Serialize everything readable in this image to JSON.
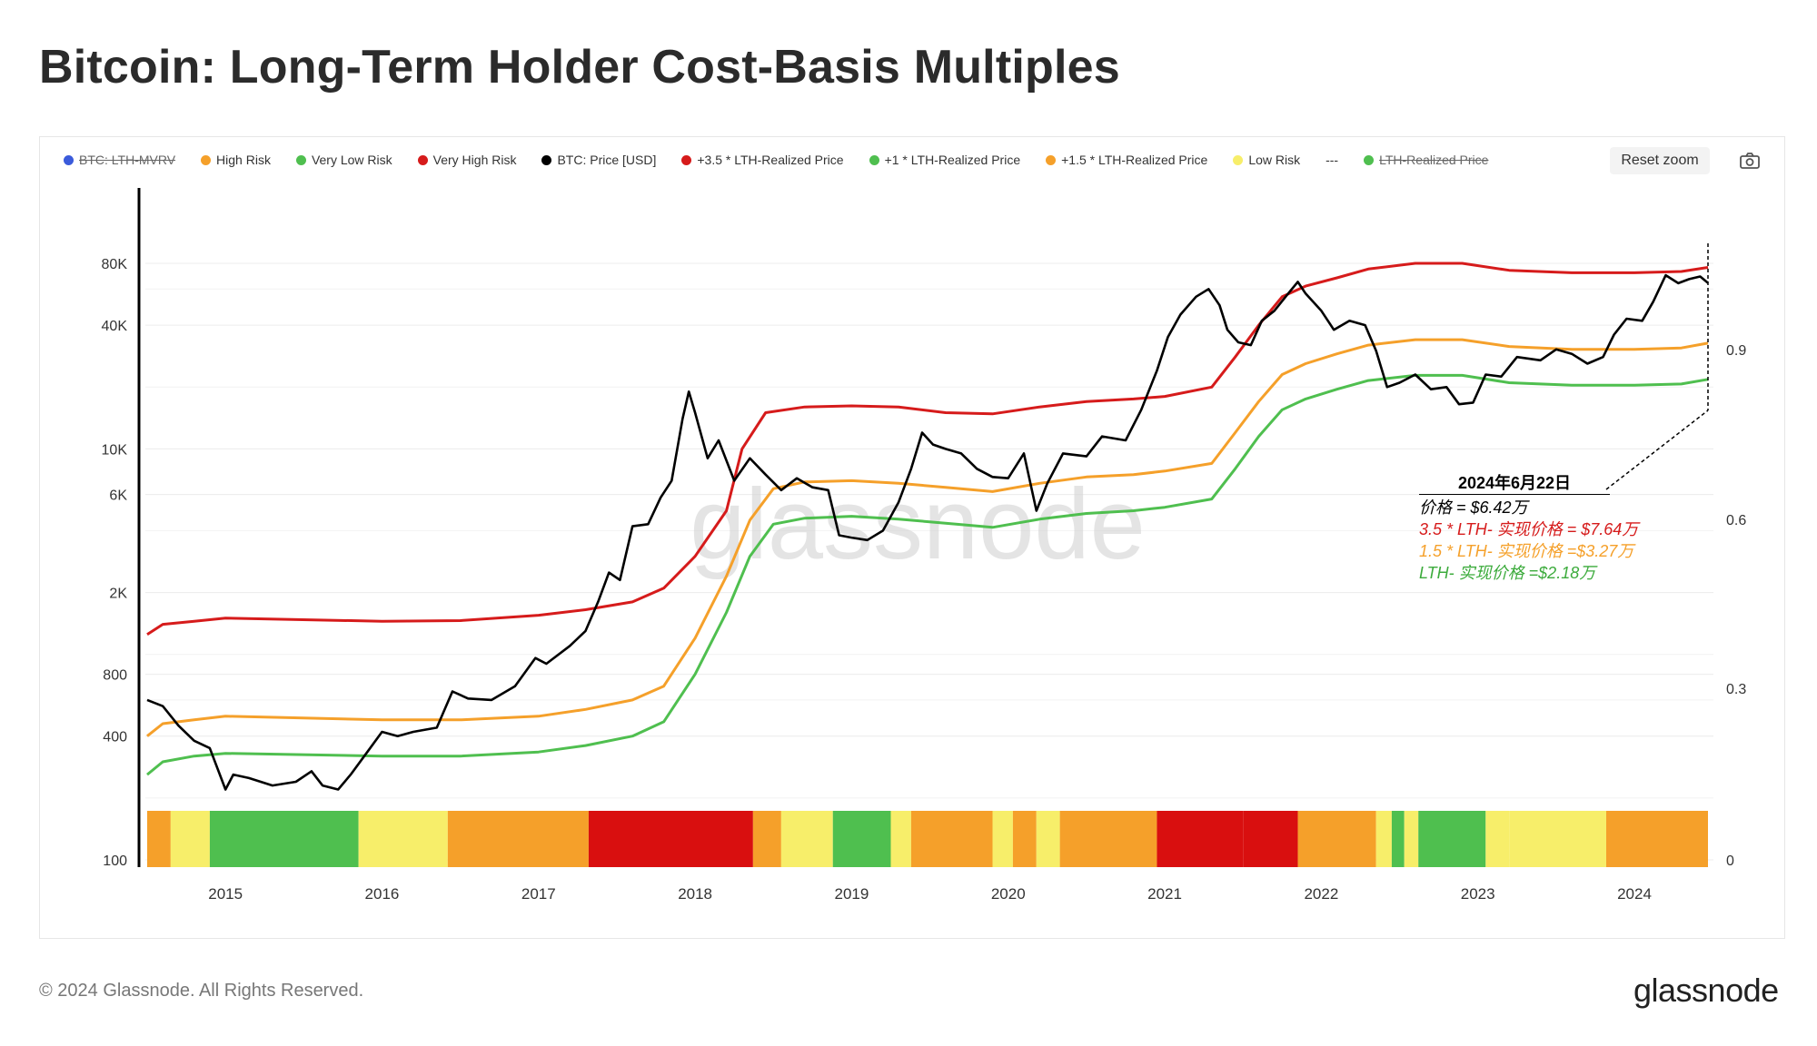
{
  "page": {
    "title": "Bitcoin: Long-Term Holder Cost-Basis Multiples",
    "copyright": "© 2024 Glassnode. All Rights Reserved.",
    "brand": "glassnode",
    "watermark": "glassnode",
    "reset_zoom_label": "Reset zoom",
    "camera_icon": "camera-icon"
  },
  "legend": [
    {
      "label": "BTC: LTH-MVRV",
      "color": "#3b5bdb",
      "disabled": true
    },
    {
      "label": "High Risk",
      "color": "#f5a02a",
      "disabled": false
    },
    {
      "label": "Very Low Risk",
      "color": "#4fbf4f",
      "disabled": false
    },
    {
      "label": "Very High Risk",
      "color": "#d61b1b",
      "disabled": false
    },
    {
      "label": "BTC: Price [USD]",
      "color": "#000000",
      "disabled": false
    },
    {
      "label": "+3.5 * LTH-Realized Price",
      "color": "#d61b1b",
      "disabled": false
    },
    {
      "label": "+1 * LTH-Realized Price",
      "color": "#4fbf4f",
      "disabled": false
    },
    {
      "label": "+1.5 * LTH-Realized Price",
      "color": "#f5a02a",
      "disabled": false
    },
    {
      "label": "Low Risk",
      "color": "#f7ee6a",
      "disabled": false
    },
    {
      "label": "---",
      "color": "",
      "disabled": false
    },
    {
      "label": "LTH-Realized Price",
      "color": "#4fbf4f",
      "disabled": true
    }
  ],
  "annotation": {
    "date": "2024年6月22日",
    "price": "价格 = $6.42万",
    "lth35": "3.5 * LTH- 实现价格 = $7.64万",
    "lth15": "1.5 * LTH- 实现价格 =$3.27万",
    "lth1": "LTH- 实现价格 =$2.18万"
  },
  "chart_data": {
    "type": "line",
    "title": "Bitcoin: Long-Term Holder Cost-Basis Multiples",
    "y_scale": "log",
    "ylim": [
      100,
      120000
    ],
    "y_ticks": [
      "80K",
      "40K",
      "10K",
      "6K",
      "2K",
      "800",
      "400",
      "100"
    ],
    "y_tick_values": [
      80000,
      40000,
      10000,
      6000,
      2000,
      800,
      400,
      100
    ],
    "y2_ticks": [
      "0.9",
      "0.6",
      "0.3",
      "0"
    ],
    "x_ticks": [
      "2015",
      "2016",
      "2017",
      "2018",
      "2019",
      "2020",
      "2021",
      "2022",
      "2023",
      "2024"
    ],
    "x_tick_years": [
      2015,
      2016,
      2017,
      2018,
      2019,
      2020,
      2021,
      2022,
      2023,
      2024
    ],
    "xlim": [
      2014.5,
      2024.47
    ],
    "series": [
      {
        "name": "BTC: Price [USD]",
        "color": "#000000",
        "points": [
          [
            2014.5,
            600
          ],
          [
            2014.6,
            560
          ],
          [
            2014.7,
            450
          ],
          [
            2014.8,
            380
          ],
          [
            2014.9,
            350
          ],
          [
            2015.0,
            220
          ],
          [
            2015.05,
            260
          ],
          [
            2015.15,
            250
          ],
          [
            2015.3,
            230
          ],
          [
            2015.45,
            240
          ],
          [
            2015.55,
            270
          ],
          [
            2015.62,
            230
          ],
          [
            2015.72,
            220
          ],
          [
            2015.8,
            260
          ],
          [
            2015.9,
            330
          ],
          [
            2016.0,
            420
          ],
          [
            2016.1,
            400
          ],
          [
            2016.2,
            420
          ],
          [
            2016.35,
            440
          ],
          [
            2016.45,
            660
          ],
          [
            2016.55,
            610
          ],
          [
            2016.7,
            600
          ],
          [
            2016.85,
            700
          ],
          [
            2016.98,
            960
          ],
          [
            2017.05,
            900
          ],
          [
            2017.2,
            1100
          ],
          [
            2017.3,
            1300
          ],
          [
            2017.38,
            1800
          ],
          [
            2017.45,
            2500
          ],
          [
            2017.52,
            2300
          ],
          [
            2017.6,
            4200
          ],
          [
            2017.7,
            4300
          ],
          [
            2017.78,
            5800
          ],
          [
            2017.85,
            7000
          ],
          [
            2017.92,
            14000
          ],
          [
            2017.96,
            19000
          ],
          [
            2018.0,
            15000
          ],
          [
            2018.08,
            9000
          ],
          [
            2018.15,
            11000
          ],
          [
            2018.25,
            7000
          ],
          [
            2018.35,
            9000
          ],
          [
            2018.45,
            7500
          ],
          [
            2018.55,
            6300
          ],
          [
            2018.65,
            7200
          ],
          [
            2018.75,
            6500
          ],
          [
            2018.85,
            6300
          ],
          [
            2018.92,
            3800
          ],
          [
            2019.0,
            3700
          ],
          [
            2019.1,
            3600
          ],
          [
            2019.2,
            4000
          ],
          [
            2019.3,
            5500
          ],
          [
            2019.38,
            8000
          ],
          [
            2019.45,
            12000
          ],
          [
            2019.52,
            10500
          ],
          [
            2019.6,
            10000
          ],
          [
            2019.7,
            9500
          ],
          [
            2019.8,
            8000
          ],
          [
            2019.9,
            7300
          ],
          [
            2020.0,
            7200
          ],
          [
            2020.1,
            9500
          ],
          [
            2020.18,
            5000
          ],
          [
            2020.25,
            6800
          ],
          [
            2020.35,
            9500
          ],
          [
            2020.5,
            9200
          ],
          [
            2020.6,
            11500
          ],
          [
            2020.75,
            11000
          ],
          [
            2020.85,
            15500
          ],
          [
            2020.95,
            24000
          ],
          [
            2021.02,
            35000
          ],
          [
            2021.1,
            45000
          ],
          [
            2021.2,
            55000
          ],
          [
            2021.28,
            60000
          ],
          [
            2021.35,
            50000
          ],
          [
            2021.4,
            38000
          ],
          [
            2021.47,
            33000
          ],
          [
            2021.55,
            32000
          ],
          [
            2021.62,
            42000
          ],
          [
            2021.7,
            47000
          ],
          [
            2021.78,
            56000
          ],
          [
            2021.85,
            65000
          ],
          [
            2021.9,
            57000
          ],
          [
            2022.0,
            47000
          ],
          [
            2022.08,
            38000
          ],
          [
            2022.18,
            42000
          ],
          [
            2022.28,
            40000
          ],
          [
            2022.35,
            30000
          ],
          [
            2022.42,
            20000
          ],
          [
            2022.5,
            21000
          ],
          [
            2022.6,
            23000
          ],
          [
            2022.7,
            19500
          ],
          [
            2022.8,
            20000
          ],
          [
            2022.88,
            16500
          ],
          [
            2022.97,
            16800
          ],
          [
            2023.05,
            23000
          ],
          [
            2023.15,
            22500
          ],
          [
            2023.25,
            28000
          ],
          [
            2023.4,
            27000
          ],
          [
            2023.5,
            30500
          ],
          [
            2023.6,
            29000
          ],
          [
            2023.7,
            26000
          ],
          [
            2023.8,
            28000
          ],
          [
            2023.87,
            36000
          ],
          [
            2023.95,
            43000
          ],
          [
            2024.05,
            42000
          ],
          [
            2024.12,
            52000
          ],
          [
            2024.2,
            70000
          ],
          [
            2024.28,
            64000
          ],
          [
            2024.35,
            67000
          ],
          [
            2024.42,
            69000
          ],
          [
            2024.47,
            64200
          ]
        ]
      },
      {
        "name": "+3.5 * LTH-Realized Price",
        "color": "#d61b1b",
        "points": [
          [
            2014.5,
            1250
          ],
          [
            2014.6,
            1400
          ],
          [
            2014.8,
            1450
          ],
          [
            2015.0,
            1500
          ],
          [
            2016.0,
            1450
          ],
          [
            2016.5,
            1460
          ],
          [
            2017.0,
            1550
          ],
          [
            2017.3,
            1650
          ],
          [
            2017.6,
            1800
          ],
          [
            2017.8,
            2100
          ],
          [
            2018.0,
            3000
          ],
          [
            2018.2,
            5000
          ],
          [
            2018.3,
            10000
          ],
          [
            2018.45,
            15000
          ],
          [
            2018.7,
            16000
          ],
          [
            2019.0,
            16200
          ],
          [
            2019.3,
            16000
          ],
          [
            2019.6,
            15000
          ],
          [
            2019.9,
            14800
          ],
          [
            2020.2,
            16000
          ],
          [
            2020.5,
            17000
          ],
          [
            2020.8,
            17500
          ],
          [
            2021.0,
            18000
          ],
          [
            2021.3,
            20000
          ],
          [
            2021.45,
            28000
          ],
          [
            2021.6,
            40000
          ],
          [
            2021.75,
            55000
          ],
          [
            2021.9,
            62000
          ],
          [
            2022.1,
            68000
          ],
          [
            2022.3,
            75000
          ],
          [
            2022.6,
            80000
          ],
          [
            2022.9,
            80000
          ],
          [
            2023.2,
            74000
          ],
          [
            2023.6,
            72000
          ],
          [
            2024.0,
            72000
          ],
          [
            2024.3,
            73000
          ],
          [
            2024.47,
            76400
          ]
        ]
      },
      {
        "name": "+1.5 * LTH-Realized Price",
        "color": "#f5a02a",
        "points": [
          [
            2014.5,
            400
          ],
          [
            2014.6,
            460
          ],
          [
            2014.8,
            480
          ],
          [
            2015.0,
            500
          ],
          [
            2016.0,
            480
          ],
          [
            2016.5,
            480
          ],
          [
            2017.0,
            500
          ],
          [
            2017.3,
            540
          ],
          [
            2017.6,
            600
          ],
          [
            2017.8,
            700
          ],
          [
            2018.0,
            1200
          ],
          [
            2018.2,
            2400
          ],
          [
            2018.35,
            4500
          ],
          [
            2018.5,
            6400
          ],
          [
            2018.7,
            6900
          ],
          [
            2019.0,
            7000
          ],
          [
            2019.3,
            6800
          ],
          [
            2019.6,
            6500
          ],
          [
            2019.9,
            6200
          ],
          [
            2020.2,
            6800
          ],
          [
            2020.5,
            7300
          ],
          [
            2020.8,
            7500
          ],
          [
            2021.0,
            7800
          ],
          [
            2021.3,
            8500
          ],
          [
            2021.45,
            12000
          ],
          [
            2021.6,
            17000
          ],
          [
            2021.75,
            23000
          ],
          [
            2021.9,
            26000
          ],
          [
            2022.1,
            29000
          ],
          [
            2022.3,
            32000
          ],
          [
            2022.6,
            34000
          ],
          [
            2022.9,
            34000
          ],
          [
            2023.2,
            31500
          ],
          [
            2023.6,
            30500
          ],
          [
            2024.0,
            30500
          ],
          [
            2024.3,
            31000
          ],
          [
            2024.47,
            32700
          ]
        ]
      },
      {
        "name": "+1 * LTH-Realized Price",
        "color": "#4fbf4f",
        "points": [
          [
            2014.5,
            260
          ],
          [
            2014.6,
            300
          ],
          [
            2014.8,
            320
          ],
          [
            2015.0,
            330
          ],
          [
            2016.0,
            320
          ],
          [
            2016.5,
            320
          ],
          [
            2017.0,
            335
          ],
          [
            2017.3,
            360
          ],
          [
            2017.6,
            400
          ],
          [
            2017.8,
            470
          ],
          [
            2018.0,
            800
          ],
          [
            2018.2,
            1600
          ],
          [
            2018.35,
            3000
          ],
          [
            2018.5,
            4300
          ],
          [
            2018.7,
            4600
          ],
          [
            2019.0,
            4700
          ],
          [
            2019.3,
            4550
          ],
          [
            2019.6,
            4350
          ],
          [
            2019.9,
            4150
          ],
          [
            2020.2,
            4550
          ],
          [
            2020.5,
            4850
          ],
          [
            2020.8,
            5000
          ],
          [
            2021.0,
            5200
          ],
          [
            2021.3,
            5700
          ],
          [
            2021.45,
            8000
          ],
          [
            2021.6,
            11500
          ],
          [
            2021.75,
            15500
          ],
          [
            2021.9,
            17500
          ],
          [
            2022.1,
            19500
          ],
          [
            2022.3,
            21500
          ],
          [
            2022.6,
            22800
          ],
          [
            2022.9,
            22800
          ],
          [
            2023.2,
            21000
          ],
          [
            2023.6,
            20400
          ],
          [
            2024.0,
            20400
          ],
          [
            2024.3,
            20700
          ],
          [
            2024.47,
            21800
          ]
        ]
      }
    ],
    "risk_bands": [
      {
        "from": 2014.5,
        "to": 2014.65,
        "level": "High Risk"
      },
      {
        "from": 2014.65,
        "to": 2014.9,
        "level": "Low Risk"
      },
      {
        "from": 2014.9,
        "to": 2015.85,
        "level": "Very Low Risk"
      },
      {
        "from": 2015.85,
        "to": 2016.42,
        "level": "Low Risk"
      },
      {
        "from": 2016.42,
        "to": 2017.32,
        "level": "High Risk"
      },
      {
        "from": 2017.32,
        "to": 2018.37,
        "level": "Very High Risk"
      },
      {
        "from": 2018.37,
        "to": 2018.55,
        "level": "High Risk"
      },
      {
        "from": 2018.55,
        "to": 2018.88,
        "level": "Low Risk"
      },
      {
        "from": 2018.88,
        "to": 2019.25,
        "level": "Very Low Risk"
      },
      {
        "from": 2019.25,
        "to": 2019.38,
        "level": "Low Risk"
      },
      {
        "from": 2019.38,
        "to": 2019.9,
        "level": "High Risk"
      },
      {
        "from": 2019.9,
        "to": 2020.03,
        "level": "Low Risk"
      },
      {
        "from": 2020.03,
        "to": 2020.18,
        "level": "High Risk"
      },
      {
        "from": 2020.18,
        "to": 2020.33,
        "level": "Low Risk"
      },
      {
        "from": 2020.33,
        "to": 2020.95,
        "level": "High Risk"
      },
      {
        "from": 2020.95,
        "to": 2021.5,
        "level": "Very High Risk"
      },
      {
        "from": 2021.5,
        "to": 2021.85,
        "level": "Very High Risk"
      },
      {
        "from": 2021.85,
        "to": 2022.35,
        "level": "High Risk"
      },
      {
        "from": 2022.35,
        "to": 2022.45,
        "level": "Low Risk"
      },
      {
        "from": 2022.45,
        "to": 2022.53,
        "level": "Very Low Risk"
      },
      {
        "from": 2022.53,
        "to": 2022.62,
        "level": "Low Risk"
      },
      {
        "from": 2022.62,
        "to": 2023.05,
        "level": "Very Low Risk"
      },
      {
        "from": 2023.05,
        "to": 2023.2,
        "level": "Low Risk"
      },
      {
        "from": 2023.2,
        "to": 2023.82,
        "level": "Low Risk"
      },
      {
        "from": 2023.82,
        "to": 2024.47,
        "level": "High Risk"
      }
    ],
    "risk_colors": {
      "Very Low Risk": "#4fbf4f",
      "Low Risk": "#f7ee6a",
      "High Risk": "#f5a02a",
      "Very High Risk": "#d90f0f"
    }
  }
}
